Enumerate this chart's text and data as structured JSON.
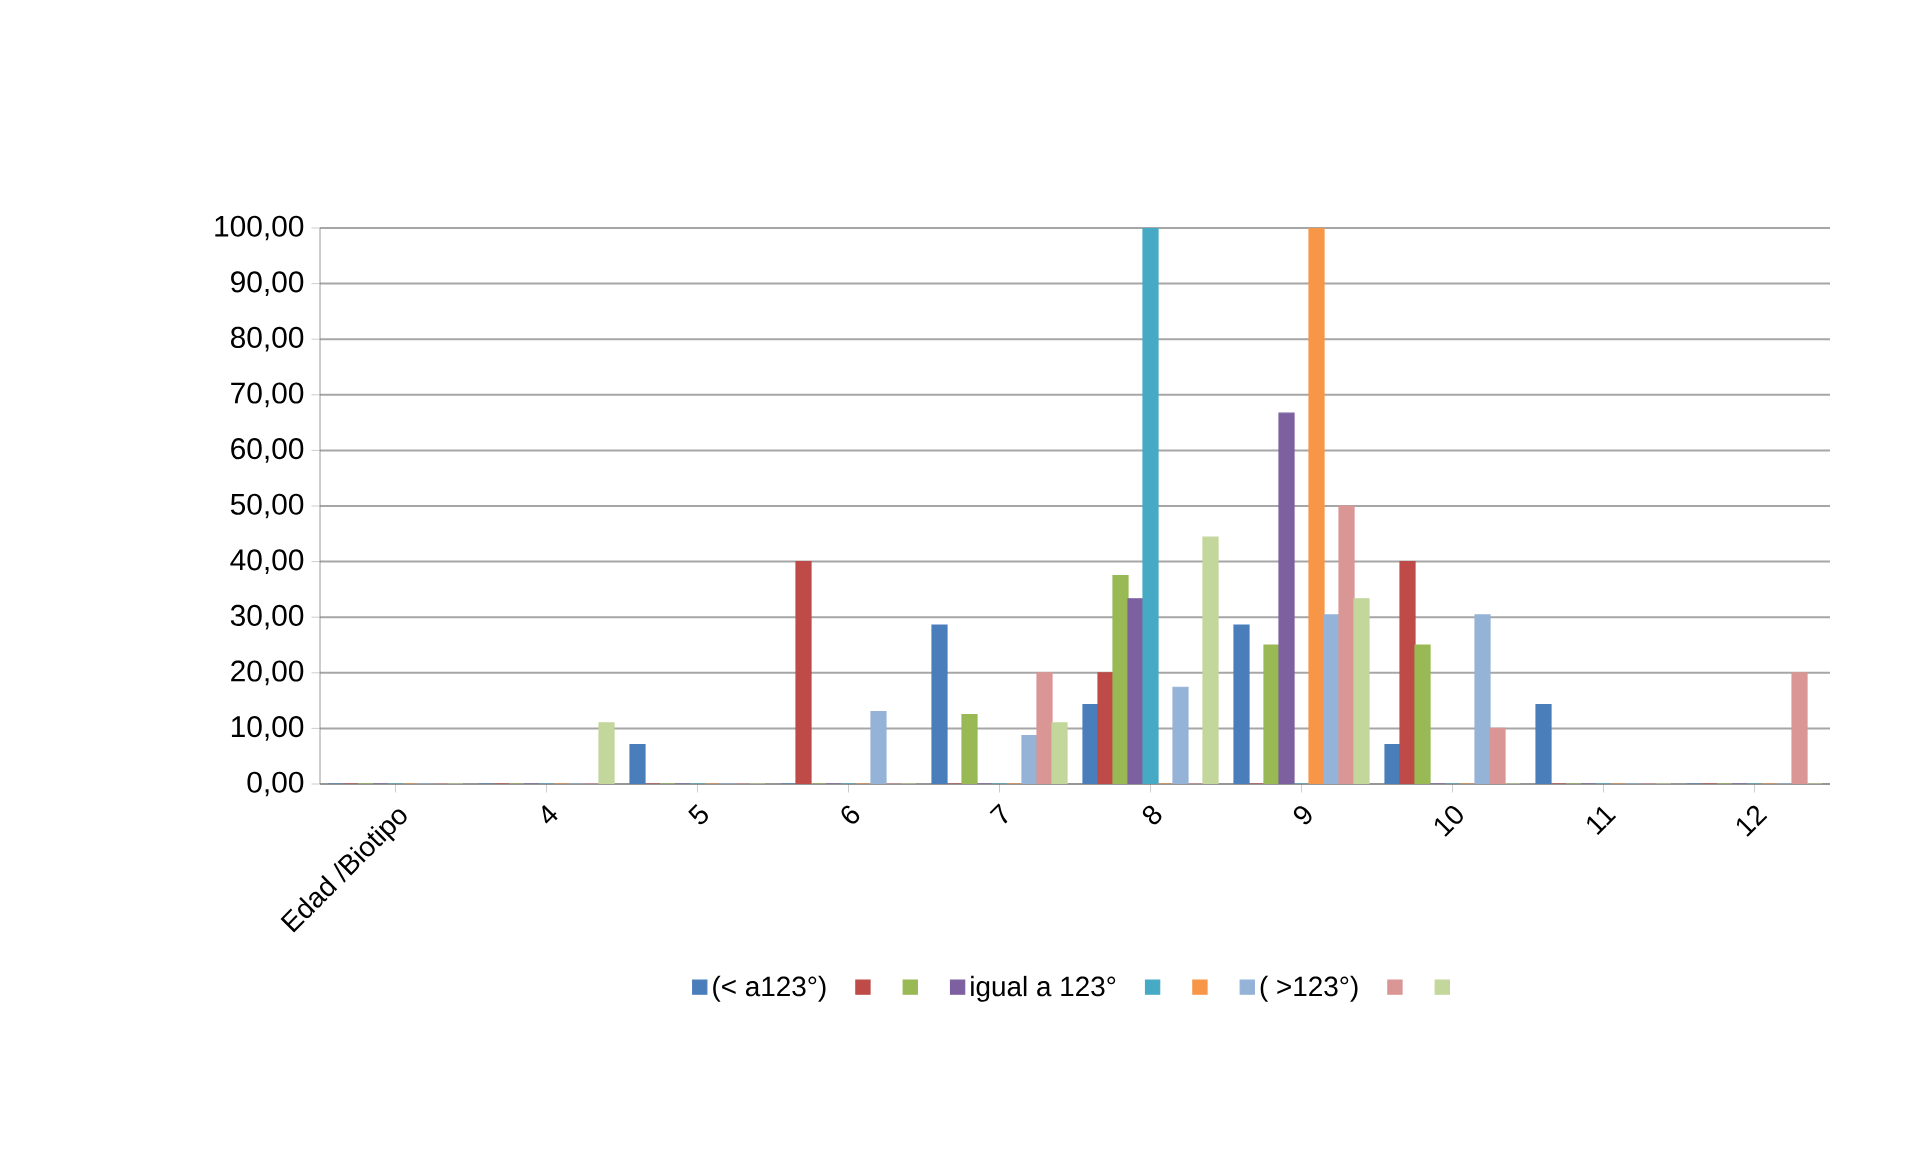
{
  "chart_data": {
    "type": "bar",
    "categories": [
      "Edad /Biotipo",
      "4",
      "5",
      "6",
      "7",
      "8",
      "9",
      "10",
      "11",
      "12"
    ],
    "series": [
      {
        "name": "(< a123°)",
        "color": "#4a7ebb",
        "values": [
          0,
          0,
          7.1,
          0,
          28.6,
          14.3,
          28.6,
          7.1,
          14.3,
          0
        ]
      },
      {
        "color": "#be4b48",
        "values": [
          0,
          0,
          0,
          40,
          0,
          20,
          0,
          40,
          0,
          0
        ]
      },
      {
        "color": "#98b954",
        "values": [
          0,
          0,
          0,
          0,
          12.5,
          37.5,
          25,
          25,
          0,
          0
        ]
      },
      {
        "name": "igual a 123°",
        "color": "#7d60a0",
        "values": [
          0,
          0,
          0,
          0,
          0,
          33.3,
          66.7,
          0,
          0,
          0
        ]
      },
      {
        "color": "#46aac5",
        "values": [
          0,
          0,
          0,
          0,
          0,
          100,
          0,
          0,
          0,
          0
        ]
      },
      {
        "color": "#f79646",
        "values": [
          0,
          0,
          0,
          0,
          0,
          0,
          100,
          0,
          0,
          0
        ]
      },
      {
        "name": "( >123°)",
        "color": "#95b3d7",
        "values": [
          0,
          0,
          0,
          13,
          8.7,
          17.4,
          30.4,
          30.4,
          0,
          0
        ]
      },
      {
        "color": "#d99694",
        "values": [
          0,
          0,
          0,
          0,
          20,
          0,
          50,
          10,
          0,
          20
        ]
      },
      {
        "color": "#c3d69b",
        "values": [
          0,
          11,
          0,
          0,
          11,
          44.4,
          33.3,
          0,
          0,
          0
        ]
      }
    ],
    "ylim": [
      0,
      100
    ],
    "yticks": [
      {
        "value": 0,
        "label": "0,00"
      },
      {
        "value": 10,
        "label": "10,00"
      },
      {
        "value": 20,
        "label": "20,00"
      },
      {
        "value": 30,
        "label": "30,00"
      },
      {
        "value": 40,
        "label": "40,00"
      },
      {
        "value": 50,
        "label": "50,00"
      },
      {
        "value": 60,
        "label": "60,00"
      },
      {
        "value": 70,
        "label": "70,00"
      },
      {
        "value": 80,
        "label": "80,00"
      },
      {
        "value": 90,
        "label": "90,00"
      },
      {
        "value": 100,
        "label": "100,00"
      }
    ],
    "grid": "y",
    "legend": "bottom"
  }
}
